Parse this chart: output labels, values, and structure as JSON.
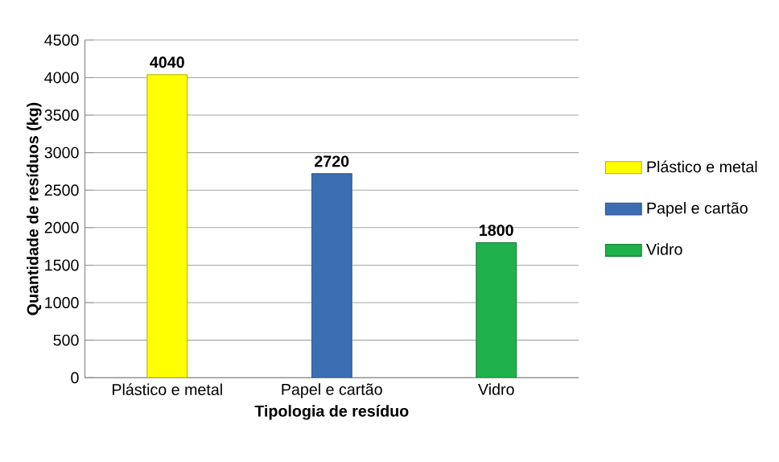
{
  "chart_data": {
    "type": "bar",
    "xlabel": "Tipologia de resíduo",
    "ylabel": "Quantidade de resíduos (kg)",
    "categories": [
      "Plástico e metal",
      "Papel e cartão",
      "Vidro"
    ],
    "series": [
      {
        "name": "Plástico e metal",
        "color": "#ffff00",
        "values": [
          4040,
          null,
          null
        ]
      },
      {
        "name": "Papel e cartão",
        "color": "#3c6eb4",
        "values": [
          null,
          2720,
          null
        ]
      },
      {
        "name": "Vidro",
        "color": "#1fb14c",
        "values": [
          null,
          null,
          1800
        ]
      }
    ],
    "ylim": [
      0,
      4500
    ],
    "yticks": [
      0,
      500,
      1000,
      1500,
      2000,
      2500,
      3000,
      3500,
      4000,
      4500
    ],
    "grid": "y",
    "legend": "right",
    "data_labels": true
  }
}
